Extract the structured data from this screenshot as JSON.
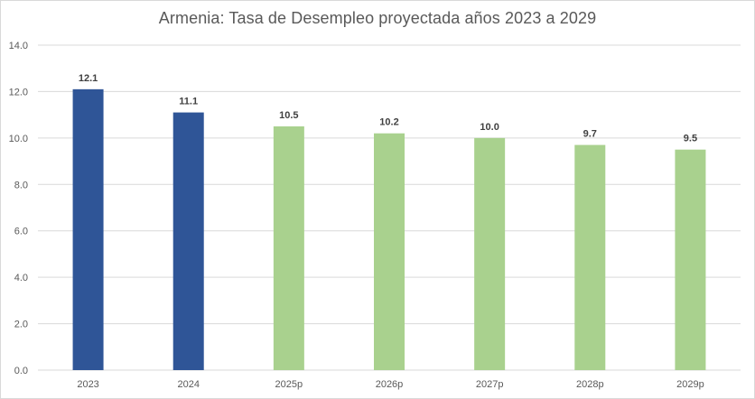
{
  "chart_data": {
    "type": "bar",
    "title": "Armenia: Tasa de Desempleo proyectada años 2023 a 2029",
    "xlabel": "",
    "ylabel": "",
    "categories": [
      "2023",
      "2024",
      "2025p",
      "2026p",
      "2027p",
      "2028p",
      "2029p"
    ],
    "values": [
      12.1,
      11.1,
      10.5,
      10.2,
      10.0,
      9.7,
      9.5
    ],
    "value_labels": [
      "12.1",
      "11.1",
      "10.5",
      "10.2",
      "10.0",
      "9.7",
      "9.5"
    ],
    "y_ticks": [
      "0.0",
      "2.0",
      "4.0",
      "6.0",
      "8.0",
      "10.0",
      "12.0",
      "14.0"
    ],
    "ylim": [
      0,
      14
    ],
    "grid": true,
    "legend": "none",
    "colors": {
      "actual": "#2f5597",
      "projected": "#a9d18e",
      "grid": "#d9d9d9"
    },
    "bar_colors": [
      "#2f5597",
      "#2f5597",
      "#a9d18e",
      "#a9d18e",
      "#a9d18e",
      "#a9d18e",
      "#a9d18e"
    ]
  }
}
